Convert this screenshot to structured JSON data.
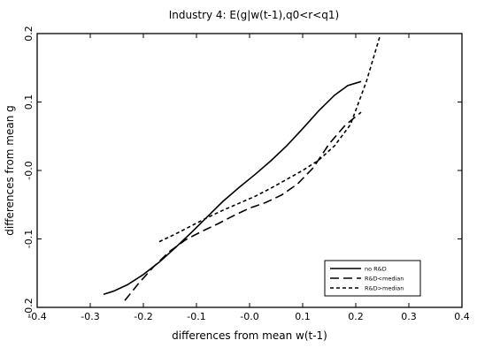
{
  "chart_data": {
    "type": "line",
    "title": "Industry 4: E(g|w(t-1),q0<r<q1)",
    "xlabel": "differences from mean w(t-1)",
    "ylabel": "differences from mean g",
    "xlim": [
      -0.4,
      0.4
    ],
    "ylim": [
      -0.2,
      0.2
    ],
    "xticks": [
      "-0.4",
      "-0.3",
      "-0.2",
      "-0.1",
      "-0.0",
      "0.1",
      "0.2",
      "0.3",
      "0.4"
    ],
    "yticks": [
      "-0.2",
      "-0.1",
      "-0.0",
      "0.1",
      "0.2"
    ],
    "grid": false,
    "legend_position": "bottom-right",
    "series": [
      {
        "name": "no R&D",
        "dash": "solid",
        "x": [
          -0.275,
          -0.255,
          -0.23,
          -0.2,
          -0.17,
          -0.14,
          -0.11,
          -0.08,
          -0.05,
          -0.02,
          0.01,
          0.04,
          0.07,
          0.1,
          0.13,
          0.16,
          0.185,
          0.21
        ],
        "y": [
          -0.181,
          -0.176,
          -0.167,
          -0.152,
          -0.134,
          -0.113,
          -0.091,
          -0.068,
          -0.045,
          -0.025,
          -0.006,
          0.014,
          0.036,
          0.061,
          0.087,
          0.11,
          0.124,
          0.13
        ]
      },
      {
        "name": "R&D<median",
        "dash": "long-dash",
        "x": [
          -0.235,
          -0.21,
          -0.18,
          -0.15,
          -0.12,
          -0.09,
          -0.06,
          -0.03,
          0.0,
          0.03,
          0.06,
          0.09,
          0.12,
          0.15,
          0.18,
          0.21
        ],
        "y": [
          -0.19,
          -0.166,
          -0.14,
          -0.118,
          -0.101,
          -0.089,
          -0.078,
          -0.066,
          -0.055,
          -0.047,
          -0.036,
          -0.02,
          0.004,
          0.039,
          0.066,
          0.085
        ]
      },
      {
        "name": "R&D>median",
        "dash": "short-dash",
        "x": [
          -0.17,
          -0.14,
          -0.11,
          -0.08,
          -0.05,
          -0.02,
          0.01,
          0.04,
          0.07,
          0.1,
          0.13,
          0.16,
          0.19,
          0.22,
          0.245
        ],
        "y": [
          -0.104,
          -0.093,
          -0.081,
          -0.069,
          -0.058,
          -0.048,
          -0.038,
          -0.026,
          -0.013,
          0.0,
          0.015,
          0.036,
          0.067,
          0.13,
          0.195
        ]
      }
    ]
  }
}
